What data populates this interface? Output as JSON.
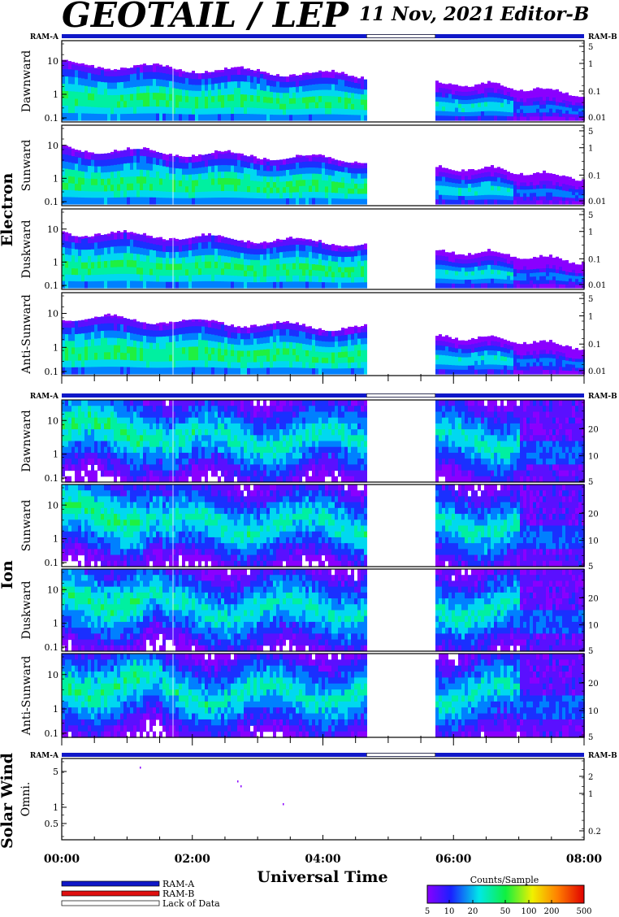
{
  "header": {
    "title": "GEOTAIL / LEP",
    "date": "11 Nov, 2021",
    "editor": "Editor-B"
  },
  "chart_data": {
    "type": "heatmap",
    "xlabel": "Universal Time",
    "x_ticks": [
      "00:00",
      "02:00",
      "04:00",
      "06:00",
      "08:00"
    ],
    "x_range_hours": [
      0,
      8
    ],
    "data_gap_hours": [
      4.67,
      5.72
    ],
    "ram_labels": {
      "a": "RAM-A",
      "b": "RAM-B"
    },
    "groups": [
      {
        "name": "Electron",
        "panels": [
          {
            "label": "Dawnward",
            "left_ticks": [
              "10",
              "1",
              "0.1"
            ],
            "right_ticks": [
              "5",
              "1",
              "0.1",
              "0.01"
            ]
          },
          {
            "label": "Sunward",
            "left_ticks": [
              "10",
              "1",
              "0.1"
            ],
            "right_ticks": [
              "5",
              "1",
              "0.1",
              "0.01"
            ]
          },
          {
            "label": "Duskward",
            "left_ticks": [
              "10",
              "1",
              "0.1"
            ],
            "right_ticks": [
              "5",
              "1",
              "0.1",
              "0.01"
            ]
          },
          {
            "label": "Anti-Sunward",
            "left_ticks": [
              "10",
              "1",
              "0.1"
            ],
            "right_ticks": [
              "5",
              "1",
              "0.1",
              "0.01"
            ]
          }
        ]
      },
      {
        "name": "Ion",
        "panels": [
          {
            "label": "Dawnward",
            "left_ticks": [
              "10",
              "1",
              "0.1"
            ],
            "right_ticks": [
              "20",
              "10",
              "5"
            ]
          },
          {
            "label": "Sunward",
            "left_ticks": [
              "10",
              "1",
              "0.1"
            ],
            "right_ticks": [
              "20",
              "10",
              "5"
            ]
          },
          {
            "label": "Duskward",
            "left_ticks": [
              "10",
              "1",
              "0.1"
            ],
            "right_ticks": [
              "20",
              "10",
              "5"
            ]
          },
          {
            "label": "Anti-Sunward",
            "left_ticks": [
              "10",
              "1",
              "0.1"
            ],
            "right_ticks": [
              "20",
              "10",
              "5"
            ]
          }
        ]
      },
      {
        "name": "Solar Wind",
        "panels": [
          {
            "label": "Omni.",
            "left_ticks": [
              "5",
              "1",
              "0.5"
            ],
            "right_ticks": [
              "2",
              "1",
              "0.2"
            ]
          }
        ]
      }
    ],
    "legend": {
      "entries": [
        "RAM-A",
        "RAM-B",
        "Lack of Data"
      ],
      "colors": {
        "ram_a": "#1018c8",
        "ram_b": "#e01010",
        "lack": "#ffffff"
      }
    },
    "colorbar": {
      "title": "Counts/Sample",
      "ticks": [
        "5",
        "10",
        "20",
        "50",
        "100",
        "200",
        "500"
      ]
    }
  }
}
